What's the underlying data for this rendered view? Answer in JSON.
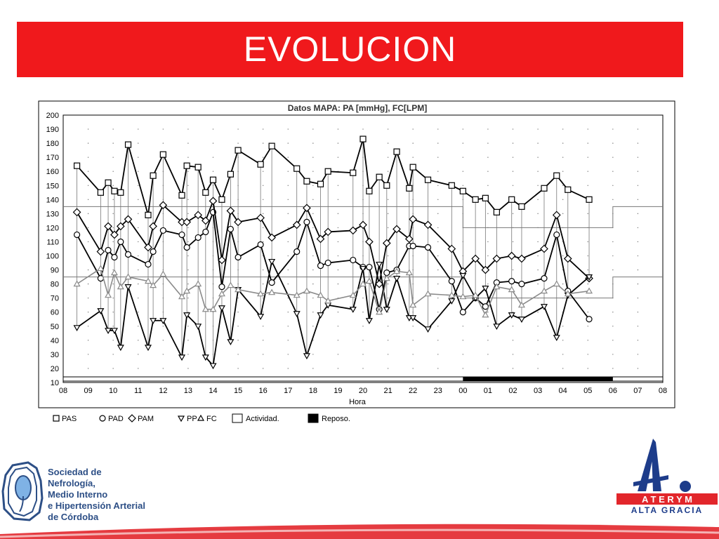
{
  "slide": {
    "title": "EVOLUCION",
    "colors": {
      "title_bg": "#f0191c",
      "title_text": "#ffffff",
      "brand_red": "#e2262b",
      "brand_blue": "#1d3c8a",
      "org_blue": "#2d4f86"
    }
  },
  "org_logo": {
    "lines": [
      "Sociedad de",
      "Nefrología,",
      "Medio Interno",
      "e Hipertensión Arterial",
      "de Córdoba"
    ],
    "icon": "cordoba-kidney-emblem-icon"
  },
  "brand_logo": {
    "mark": "A.",
    "name": "A T E R Y M",
    "subtitle": "ALTA GRACIA",
    "icon": "aterym-a-mark-icon"
  },
  "chart_data": {
    "type": "line",
    "title": "Datos MAPA: PA [mmHg], FC[LPM]",
    "xlabel": "Hora",
    "ylabel": "",
    "ylim": [
      10,
      200
    ],
    "yticks": [
      10,
      20,
      30,
      40,
      50,
      60,
      70,
      80,
      90,
      100,
      110,
      120,
      130,
      140,
      150,
      160,
      170,
      180,
      190,
      200
    ],
    "xlim": [
      8,
      32
    ],
    "xticks": [
      "08",
      "09",
      "10",
      "11",
      "12",
      "13",
      "14",
      "15",
      "16",
      "17",
      "18",
      "19",
      "20",
      "21",
      "22",
      "23",
      "00",
      "01",
      "02",
      "03",
      "04",
      "05",
      "06",
      "07",
      "08"
    ],
    "grid": true,
    "legend_position": "bottom",
    "legend": [
      {
        "label": "PAS",
        "marker": "square"
      },
      {
        "label": "PAD",
        "marker": "circle"
      },
      {
        "label": "PAM",
        "marker": "diamond"
      },
      {
        "label": "PP",
        "marker": "triangle-down"
      },
      {
        "label": "FC",
        "marker": "triangle-up"
      },
      {
        "label": "Actividad.",
        "marker": "open-box"
      },
      {
        "label": "Reposo.",
        "marker": "filled-box"
      }
    ],
    "x": [
      8.55,
      9.5,
      9.8,
      10.05,
      10.3,
      10.6,
      11.4,
      11.6,
      12.0,
      12.75,
      12.95,
      13.4,
      13.7,
      14.0,
      14.35,
      14.7,
      15.0,
      15.9,
      16.35,
      17.35,
      17.75,
      18.3,
      18.6,
      19.6,
      20.0,
      20.25,
      20.65,
      20.95,
      21.35,
      21.85,
      22.0,
      22.6,
      23.55,
      24.0,
      24.5,
      24.9,
      25.35,
      25.95,
      26.35,
      27.25,
      27.75,
      28.2,
      29.05
    ],
    "series": [
      {
        "name": "PAS",
        "marker": "square",
        "color": "#000000",
        "values": [
          164,
          145,
          152,
          146,
          145,
          179,
          129,
          157,
          172,
          143,
          164,
          163,
          145,
          154,
          140,
          158,
          175,
          165,
          178,
          162,
          153,
          151,
          160,
          159,
          183,
          146,
          156,
          150,
          174,
          148,
          163,
          154,
          150,
          146,
          140,
          141,
          131,
          140,
          135,
          148,
          157,
          147,
          140
        ]
      },
      {
        "name": "PAD",
        "marker": "circle",
        "color": "#000000",
        "values": [
          115,
          84,
          104,
          99,
          110,
          101,
          94,
          103,
          118,
          115,
          106,
          113,
          117,
          131,
          78,
          119,
          99,
          108,
          81,
          103,
          124,
          93,
          95,
          97,
          92,
          92,
          62,
          88,
          90,
          107,
          107,
          106,
          82,
          60,
          70,
          64,
          81,
          82,
          80,
          84,
          115,
          75,
          55
        ]
      },
      {
        "name": "PAM",
        "marker": "diamond",
        "color": "#000000",
        "values": [
          131,
          103,
          121,
          115,
          121,
          126,
          106,
          121,
          136,
          124,
          124,
          129,
          125,
          139,
          97,
          132,
          124,
          127,
          113,
          122,
          134,
          112,
          117,
          118,
          122,
          110,
          80,
          109,
          119,
          112,
          126,
          122,
          105,
          89,
          98,
          90,
          98,
          100,
          98,
          105,
          129,
          98,
          84
        ]
      },
      {
        "name": "PP",
        "marker": "triangle-down",
        "color": "#000000",
        "values": [
          49,
          61,
          47,
          47,
          35,
          78,
          35,
          54,
          54,
          28,
          58,
          50,
          28,
          22,
          63,
          39,
          76,
          57,
          96,
          59,
          29,
          58,
          65,
          62,
          91,
          54,
          94,
          62,
          84,
          56,
          56,
          48,
          68,
          86,
          70,
          77,
          50,
          58,
          55,
          64,
          42,
          72,
          85
        ]
      },
      {
        "name": "FC",
        "marker": "triangle-up",
        "color": "#8a8a8a",
        "values": [
          80,
          91,
          72,
          88,
          78,
          85,
          82,
          79,
          87,
          71,
          75,
          80,
          62,
          62,
          73,
          79,
          76,
          73,
          74,
          72,
          75,
          72,
          68,
          72,
          80,
          82,
          60,
          84,
          89,
          88,
          65,
          73,
          72,
          71,
          72,
          58,
          78,
          76,
          65,
          75,
          80,
          73,
          75
        ]
      }
    ],
    "reference_lines": [
      {
        "name": "sys_threshold",
        "segments": [
          [
            8,
            32
          ]
        ],
        "steps": [
          [
            8,
            24,
            135
          ],
          [
            24,
            30,
            120
          ],
          [
            30,
            32,
            135
          ]
        ]
      },
      {
        "name": "dia_threshold",
        "steps": [
          [
            8,
            24,
            85
          ],
          [
            24,
            30,
            70
          ],
          [
            30,
            32,
            85
          ]
        ]
      }
    ],
    "reposo": [
      24,
      30
    ]
  }
}
